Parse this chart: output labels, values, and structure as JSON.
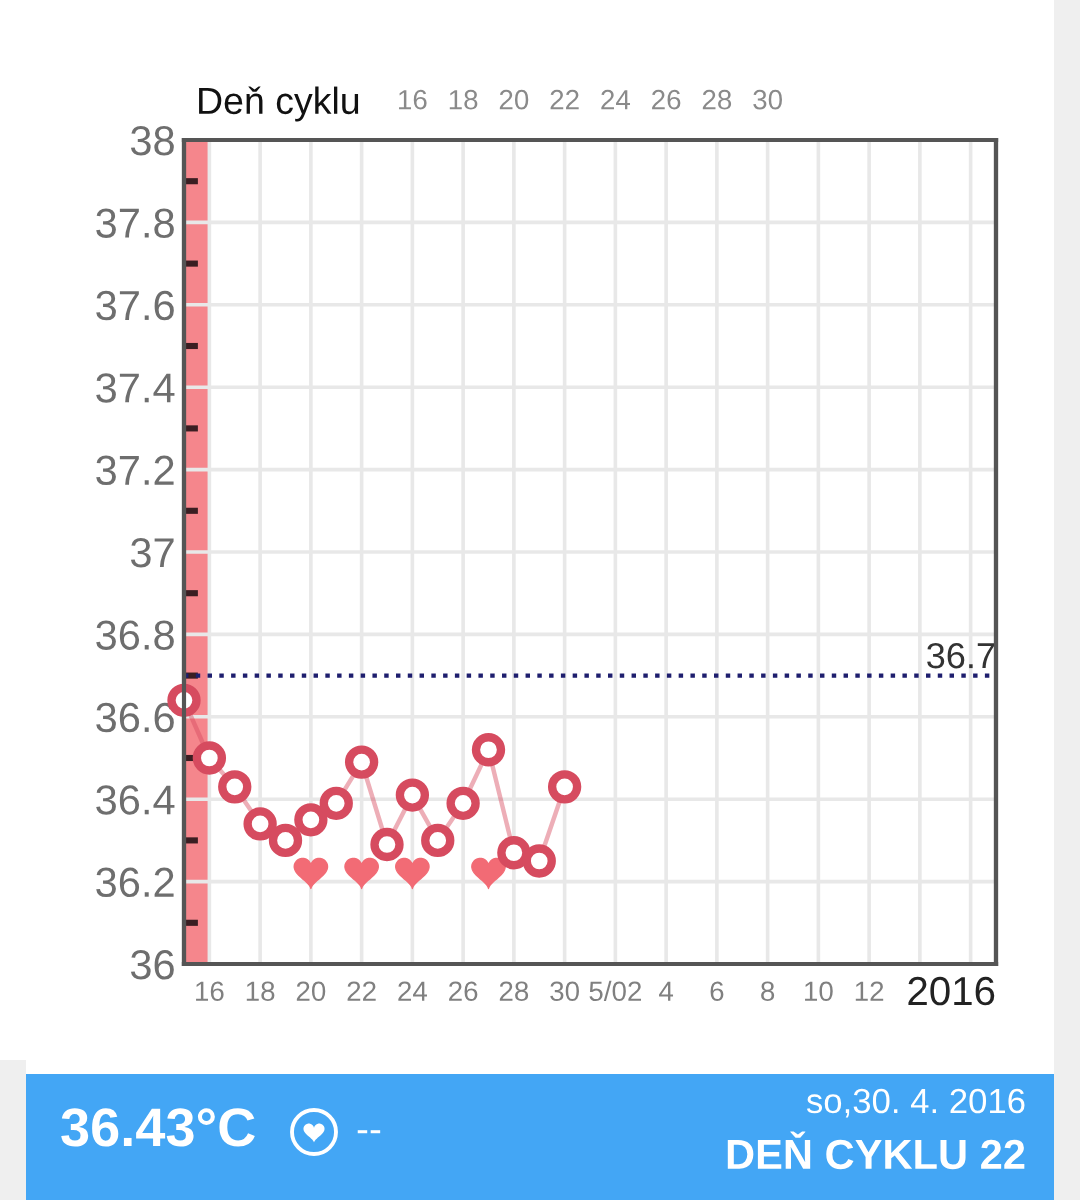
{
  "chart_data": {
    "type": "line",
    "x": [
      "2016-04-15",
      "2016-04-16",
      "2016-04-17",
      "2016-04-18",
      "2016-04-19",
      "2016-04-20",
      "2016-04-21",
      "2016-04-22",
      "2016-04-23",
      "2016-04-24",
      "2016-04-25",
      "2016-04-26",
      "2016-04-27",
      "2016-04-28",
      "2016-04-29",
      "2016-04-30"
    ],
    "series": [
      {
        "color": "#d64b5f",
        "values": [
          36.64,
          36.5,
          36.43,
          36.34,
          36.3,
          36.35,
          36.39,
          36.49,
          36.29,
          36.41,
          36.3,
          36.39,
          36.52,
          36.27,
          36.25,
          36.43
        ]
      },
      {
        "type": "scatter",
        "color": "#f26b75",
        "x": [
          "2016-04-20",
          "2016-04-22",
          "2016-04-24",
          "2016-04-27"
        ],
        "values": [
          36.22,
          36.22,
          36.22,
          36.22
        ]
      }
    ],
    "marker": "circle",
    "line_style": "solid",
    "xlim": [
      "2016-04-15",
      "2016-05-17"
    ],
    "xticks": [
      {
        "value": "2016-04-16",
        "label": "16"
      },
      {
        "value": "2016-04-18",
        "label": "18"
      },
      {
        "value": "2016-04-20",
        "label": "20"
      },
      {
        "value": "2016-04-22",
        "label": "22"
      },
      {
        "value": "2016-04-24",
        "label": "24"
      },
      {
        "value": "2016-04-26",
        "label": "26"
      },
      {
        "value": "2016-04-28",
        "label": "28"
      },
      {
        "value": "2016-04-30",
        "label": "30"
      },
      {
        "value": "2016-05-02",
        "label": "5/02"
      },
      {
        "value": "2016-05-04",
        "label": "4"
      },
      {
        "value": "2016-05-06",
        "label": "6"
      },
      {
        "value": "2016-05-08",
        "label": "8"
      },
      {
        "value": "2016-05-10",
        "label": "10"
      },
      {
        "value": "2016-05-12",
        "label": "12"
      },
      {
        "value": "2016-05-14",
        "label": null
      },
      {
        "value": "2016-05-16",
        "label": null
      }
    ],
    "xlabel": "2016",
    "ylim": [
      36,
      38
    ],
    "yticks": [
      36,
      {
        "value": 36.1,
        "label": null
      },
      36.2,
      {
        "value": 36.3,
        "label": null
      },
      36.4,
      {
        "value": 36.5,
        "label": null
      },
      36.6,
      {
        "value": 36.7,
        "label": null
      },
      36.8,
      {
        "value": 36.9,
        "label": null
      },
      37,
      {
        "value": 37.1,
        "label": null
      },
      37.2,
      {
        "value": 37.3,
        "label": null
      },
      37.4,
      {
        "value": 37.5,
        "label": null
      },
      37.6,
      {
        "value": 37.7,
        "label": null
      },
      37.8,
      {
        "value": 37.9,
        "label": null
      },
      38
    ],
    "x2lim": [
      7,
      39
    ],
    "x2ticks": [
      16,
      18,
      20,
      22,
      24,
      26,
      28,
      30
    ],
    "x2label": "Deň cyklu",
    "grid": true,
    "ref_lines": [
      {
        "axis": "y",
        "value": 36.7,
        "label": "36.7",
        "color": "#1e1e6e",
        "line_style": "dotted"
      }
    ],
    "bands": [
      {
        "axis": "x",
        "from": "2016-04-15",
        "to": "2016-04-16",
        "color": "#f5868c"
      }
    ],
    "annotations": [
      "36.43°C",
      "--",
      "so,30. 4. 2016",
      "DEŇ CYKLU 22"
    ]
  }
}
